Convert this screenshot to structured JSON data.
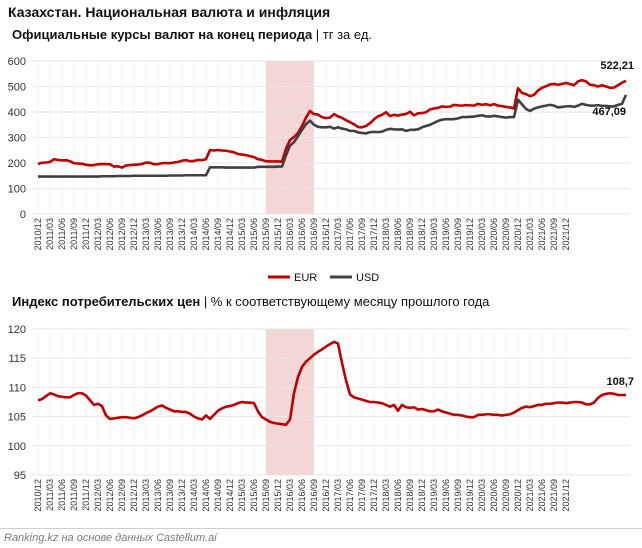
{
  "title": "Казахстан. Национальная валюта и инфляция",
  "footer": "Ranking.kz на основе данных Castellum.ai",
  "colors": {
    "eur": "#c00000",
    "usd": "#404040",
    "shade": "#f4d6d6",
    "grid": "#e6e6e6",
    "axis_text": "#333333"
  },
  "chart_data": [
    {
      "type": "line",
      "title_bold": "Официальные курсы валют на конец периода",
      "title_rest": " | тг за ед.",
      "ylim": [
        0,
        600
      ],
      "yticks": [
        0,
        100,
        200,
        300,
        400,
        500,
        600
      ],
      "xticks": [
        "2010/12",
        "2011/03",
        "2011/06",
        "2011/09",
        "2011/12",
        "2012/03",
        "2012/06",
        "2012/09",
        "2012/12",
        "2013/03",
        "2013/06",
        "2013/09",
        "2013/12",
        "2014/03",
        "2014/06",
        "2014/09",
        "2014/12",
        "2015/03",
        "2015/06",
        "2015/09",
        "2015/12",
        "2016/03",
        "2016/06",
        "2016/09",
        "2016/12",
        "2017/03",
        "2017/06",
        "2017/09",
        "2017/12",
        "2018/03",
        "2018/06",
        "2018/09",
        "2018/12",
        "2019/03",
        "2019/06",
        "2019/09",
        "2019/12",
        "2020/03",
        "2020/06",
        "2020/09",
        "2020/12",
        "2021/03",
        "2021/06",
        "2021/09",
        "2021/12"
      ],
      "shade": [
        "2015/09",
        "2016/09"
      ],
      "legend": [
        "EUR",
        "USD"
      ],
      "end_labels": {
        "eur": "522,21",
        "usd": "467,09"
      },
      "series": [
        {
          "name": "EUR",
          "values": [
            196,
            201,
            202,
            204,
            215,
            212,
            210,
            211,
            207,
            199,
            198,
            197,
            193,
            191,
            192,
            195,
            196,
            196,
            195,
            186,
            187,
            182,
            190,
            192,
            193,
            194,
            196,
            202,
            201,
            195,
            196,
            199,
            200,
            199,
            202,
            204,
            209,
            211,
            207,
            208,
            212,
            211,
            215,
            251,
            249,
            251,
            249,
            248,
            245,
            242,
            235,
            233,
            231,
            227,
            223,
            215,
            212,
            207,
            206,
            206,
            206,
            205,
            256,
            290,
            302,
            318,
            345,
            378,
            404,
            392,
            390,
            380,
            376,
            378,
            392,
            383,
            377,
            368,
            360,
            352,
            341,
            340,
            345,
            356,
            371,
            383,
            389,
            399,
            384,
            389,
            386,
            390,
            392,
            401,
            387,
            395,
            396,
            399,
            410,
            414,
            416,
            422,
            420,
            421,
            428,
            426,
            425,
            427,
            426,
            425,
            432,
            428,
            431,
            426,
            431,
            425,
            423,
            420,
            418,
            414,
            493,
            475,
            470,
            462,
            467,
            484,
            495,
            501,
            508,
            510,
            507,
            510,
            514,
            510,
            505,
            520,
            525,
            520,
            507,
            505,
            500,
            505,
            500,
            495,
            496,
            505,
            515,
            522.21
          ]
        },
        {
          "name": "USD",
          "values": [
            147,
            147,
            147,
            147,
            147,
            147,
            147,
            147,
            147,
            147,
            147,
            147,
            147,
            147,
            147,
            147,
            148,
            148,
            148,
            148,
            149,
            149,
            149,
            149,
            150,
            150,
            150,
            150,
            150,
            150,
            150,
            150,
            150,
            151,
            151,
            151,
            151,
            152,
            152,
            152,
            152,
            152,
            152,
            183,
            183,
            183,
            183,
            182,
            182,
            182,
            182,
            182,
            182,
            182,
            182,
            185,
            185,
            185,
            185,
            185,
            186,
            186,
            230,
            268,
            282,
            305,
            330,
            352,
            366,
            350,
            342,
            340,
            340,
            342,
            335,
            340,
            335,
            332,
            326,
            326,
            320,
            318,
            316,
            321,
            322,
            321,
            323,
            330,
            334,
            332,
            331,
            332,
            326,
            330,
            330,
            332,
            340,
            345,
            350,
            357,
            365,
            370,
            372,
            372,
            372,
            375,
            380,
            380,
            381,
            382,
            385,
            387,
            383,
            382,
            385,
            383,
            380,
            378,
            380,
            380,
            448,
            430,
            412,
            404,
            413,
            418,
            422,
            425,
            428,
            425,
            418,
            420,
            422,
            423,
            420,
            425,
            432,
            428,
            425,
            425,
            427,
            424,
            424,
            422,
            422,
            428,
            432,
            467.09
          ]
        }
      ]
    },
    {
      "type": "line",
      "title_bold": "Индекс потребительских цен",
      "title_rest": " | % к соответствующему месяцу прошлого года",
      "ylim": [
        95,
        120
      ],
      "yticks": [
        95,
        100,
        105,
        110,
        115,
        120
      ],
      "xticks": [
        "2010/12",
        "2011/03",
        "2011/06",
        "2011/09",
        "2011/12",
        "2012/03",
        "2012/06",
        "2012/09",
        "2012/12",
        "2013/03",
        "2013/06",
        "2013/09",
        "2013/12",
        "2014/03",
        "2014/06",
        "2014/09",
        "2014/12",
        "2015/03",
        "2015/06",
        "2015/09",
        "2015/12",
        "2016/03",
        "2016/06",
        "2016/09",
        "2016/12",
        "2017/03",
        "2017/06",
        "2017/09",
        "2017/12",
        "2018/03",
        "2018/06",
        "2018/09",
        "2018/12",
        "2019/03",
        "2019/06",
        "2019/09",
        "2019/12",
        "2020/03",
        "2020/06",
        "2020/09",
        "2020/12",
        "2021/03",
        "2021/06",
        "2021/09",
        "2021/12"
      ],
      "shade": [
        "2015/09",
        "2016/09"
      ],
      "end_labels": {
        "cpi": "108,7"
      },
      "series": [
        {
          "name": "",
          "values": [
            107.8,
            108.0,
            108.5,
            109.0,
            108.8,
            108.5,
            108.4,
            108.3,
            108.3,
            108.7,
            109.0,
            109.0,
            108.6,
            107.8,
            107.0,
            107.2,
            106.8,
            105.2,
            104.6,
            104.7,
            104.8,
            104.9,
            104.9,
            104.8,
            104.7,
            104.9,
            105.2,
            105.6,
            105.9,
            106.3,
            106.7,
            106.9,
            106.5,
            106.2,
            105.9,
            105.9,
            105.8,
            105.8,
            105.5,
            105.0,
            104.7,
            104.5,
            105.2,
            104.6,
            105.3,
            106.0,
            106.4,
            106.7,
            106.8,
            107.0,
            107.3,
            107.5,
            107.4,
            107.4,
            107.3,
            105.9,
            104.9,
            104.5,
            104.1,
            103.9,
            103.8,
            103.7,
            103.6,
            104.5,
            109.0,
            111.8,
            113.5,
            114.4,
            115.0,
            115.6,
            116.1,
            116.5,
            117.0,
            117.4,
            117.8,
            117.5,
            114.2,
            111.2,
            108.8,
            108.3,
            108.1,
            107.9,
            107.7,
            107.5,
            107.5,
            107.4,
            107.3,
            107.0,
            106.7,
            107.0,
            106.0,
            107.0,
            106.6,
            106.5,
            106.6,
            106.2,
            106.3,
            106.1,
            105.9,
            105.9,
            106.2,
            105.9,
            105.7,
            105.5,
            105.3,
            105.3,
            105.2,
            105.0,
            104.9,
            104.9,
            105.3,
            105.3,
            105.4,
            105.4,
            105.3,
            105.3,
            105.2,
            105.3,
            105.4,
            105.7,
            106.1,
            106.5,
            106.7,
            106.6,
            106.8,
            107.0,
            107.0,
            107.2,
            107.2,
            107.3,
            107.4,
            107.4,
            107.3,
            107.4,
            107.5,
            107.5,
            107.4,
            107.1,
            107.1,
            107.4,
            108.2,
            108.7,
            108.9,
            109.0,
            108.9,
            108.7,
            108.7,
            108.7
          ]
        }
      ]
    }
  ]
}
